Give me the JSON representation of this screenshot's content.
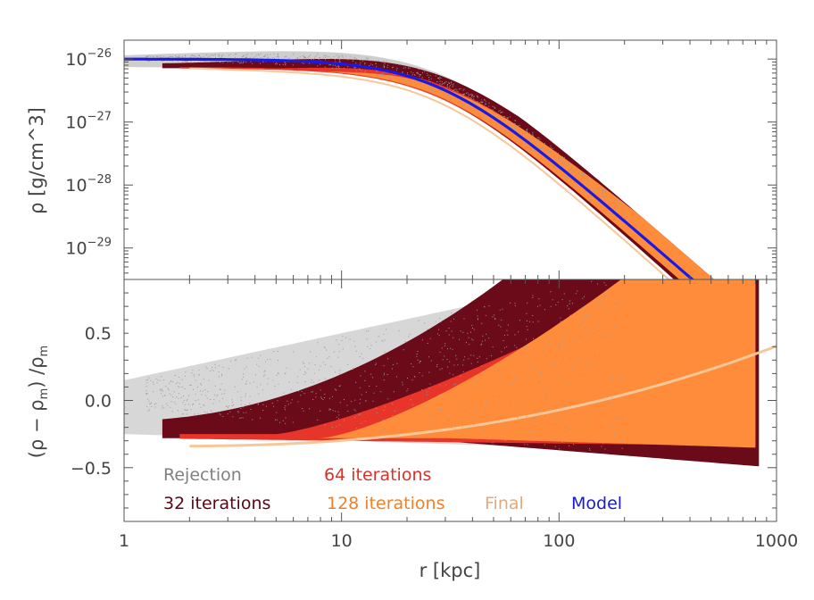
{
  "chart_data": [
    {
      "type": "scatter",
      "panel": "top",
      "xscale": "log",
      "yscale": "log",
      "xlim": [
        1,
        1000
      ],
      "ylim_exp": [
        -29.5,
        -25.7
      ],
      "ylabel": "ρ  [g/cm^3]",
      "yticks": [
        {
          "exp": -26,
          "label": "10",
          "sup": "−26"
        },
        {
          "exp": -27,
          "label": "10",
          "sup": "−27"
        },
        {
          "exp": -28,
          "label": "10",
          "sup": "−28"
        },
        {
          "exp": -29,
          "label": "10",
          "sup": "−29"
        }
      ],
      "model": {
        "rho0_exp": -26,
        "rc_kpc": 28,
        "power": 1.5
      },
      "series": [
        {
          "name": "Rejection",
          "color": "#a6a6a6",
          "x_range": [
            1,
            200
          ],
          "rel_scatter": 0.45
        },
        {
          "name": "32 iterations",
          "color": "#6b0a18",
          "x_range": [
            1.5,
            830
          ],
          "rel_scatter": 0.9
        },
        {
          "name": "64 iterations",
          "color": "#e8352a",
          "x_range": [
            1.8,
            800
          ],
          "rel_scatter": 0.45
        },
        {
          "name": "128 iterations",
          "color": "#ff8c3a",
          "x_range": [
            2,
            800
          ],
          "rel_scatter": 0.35
        },
        {
          "name": "Final",
          "color": "#f7c79a",
          "x_range": [
            2,
            1000
          ],
          "rel_scatter": 0.0
        },
        {
          "name": "Model",
          "color": "#1a1ae6",
          "x_range": [
            1,
            1000
          ],
          "rel_scatter": 0.0
        }
      ]
    },
    {
      "type": "scatter",
      "panel": "bottom",
      "xscale": "log",
      "xlim": [
        1,
        1000
      ],
      "ylim": [
        -0.9,
        0.9
      ],
      "xlabel": "r  [kpc]",
      "ylabel_parts": {
        "open": "(ρ − ρ",
        "sub1": "m",
        "mid": ")  /ρ",
        "sub2": "m"
      },
      "xticks": [
        {
          "value": 1,
          "label": "1"
        },
        {
          "value": 10,
          "label": "10"
        },
        {
          "value": 100,
          "label": "100"
        },
        {
          "value": 1000,
          "label": "1000"
        }
      ],
      "yticks": [
        {
          "value": 0.5,
          "label": "0.5"
        },
        {
          "value": 0.0,
          "label": "0.0"
        },
        {
          "value": -0.5,
          "label": "−0.5"
        }
      ]
    }
  ],
  "legend": [
    {
      "label": "Rejection",
      "color": "#808080"
    },
    {
      "label": "64 iterations",
      "color": "#d8322a"
    },
    {
      "label": "32 iterations",
      "color": "#5a0714"
    },
    {
      "label": "128 iterations",
      "color": "#f08028"
    },
    {
      "label": "Final",
      "color": "#e0aa7c"
    },
    {
      "label": "Model",
      "color": "#1a1ad0"
    }
  ]
}
